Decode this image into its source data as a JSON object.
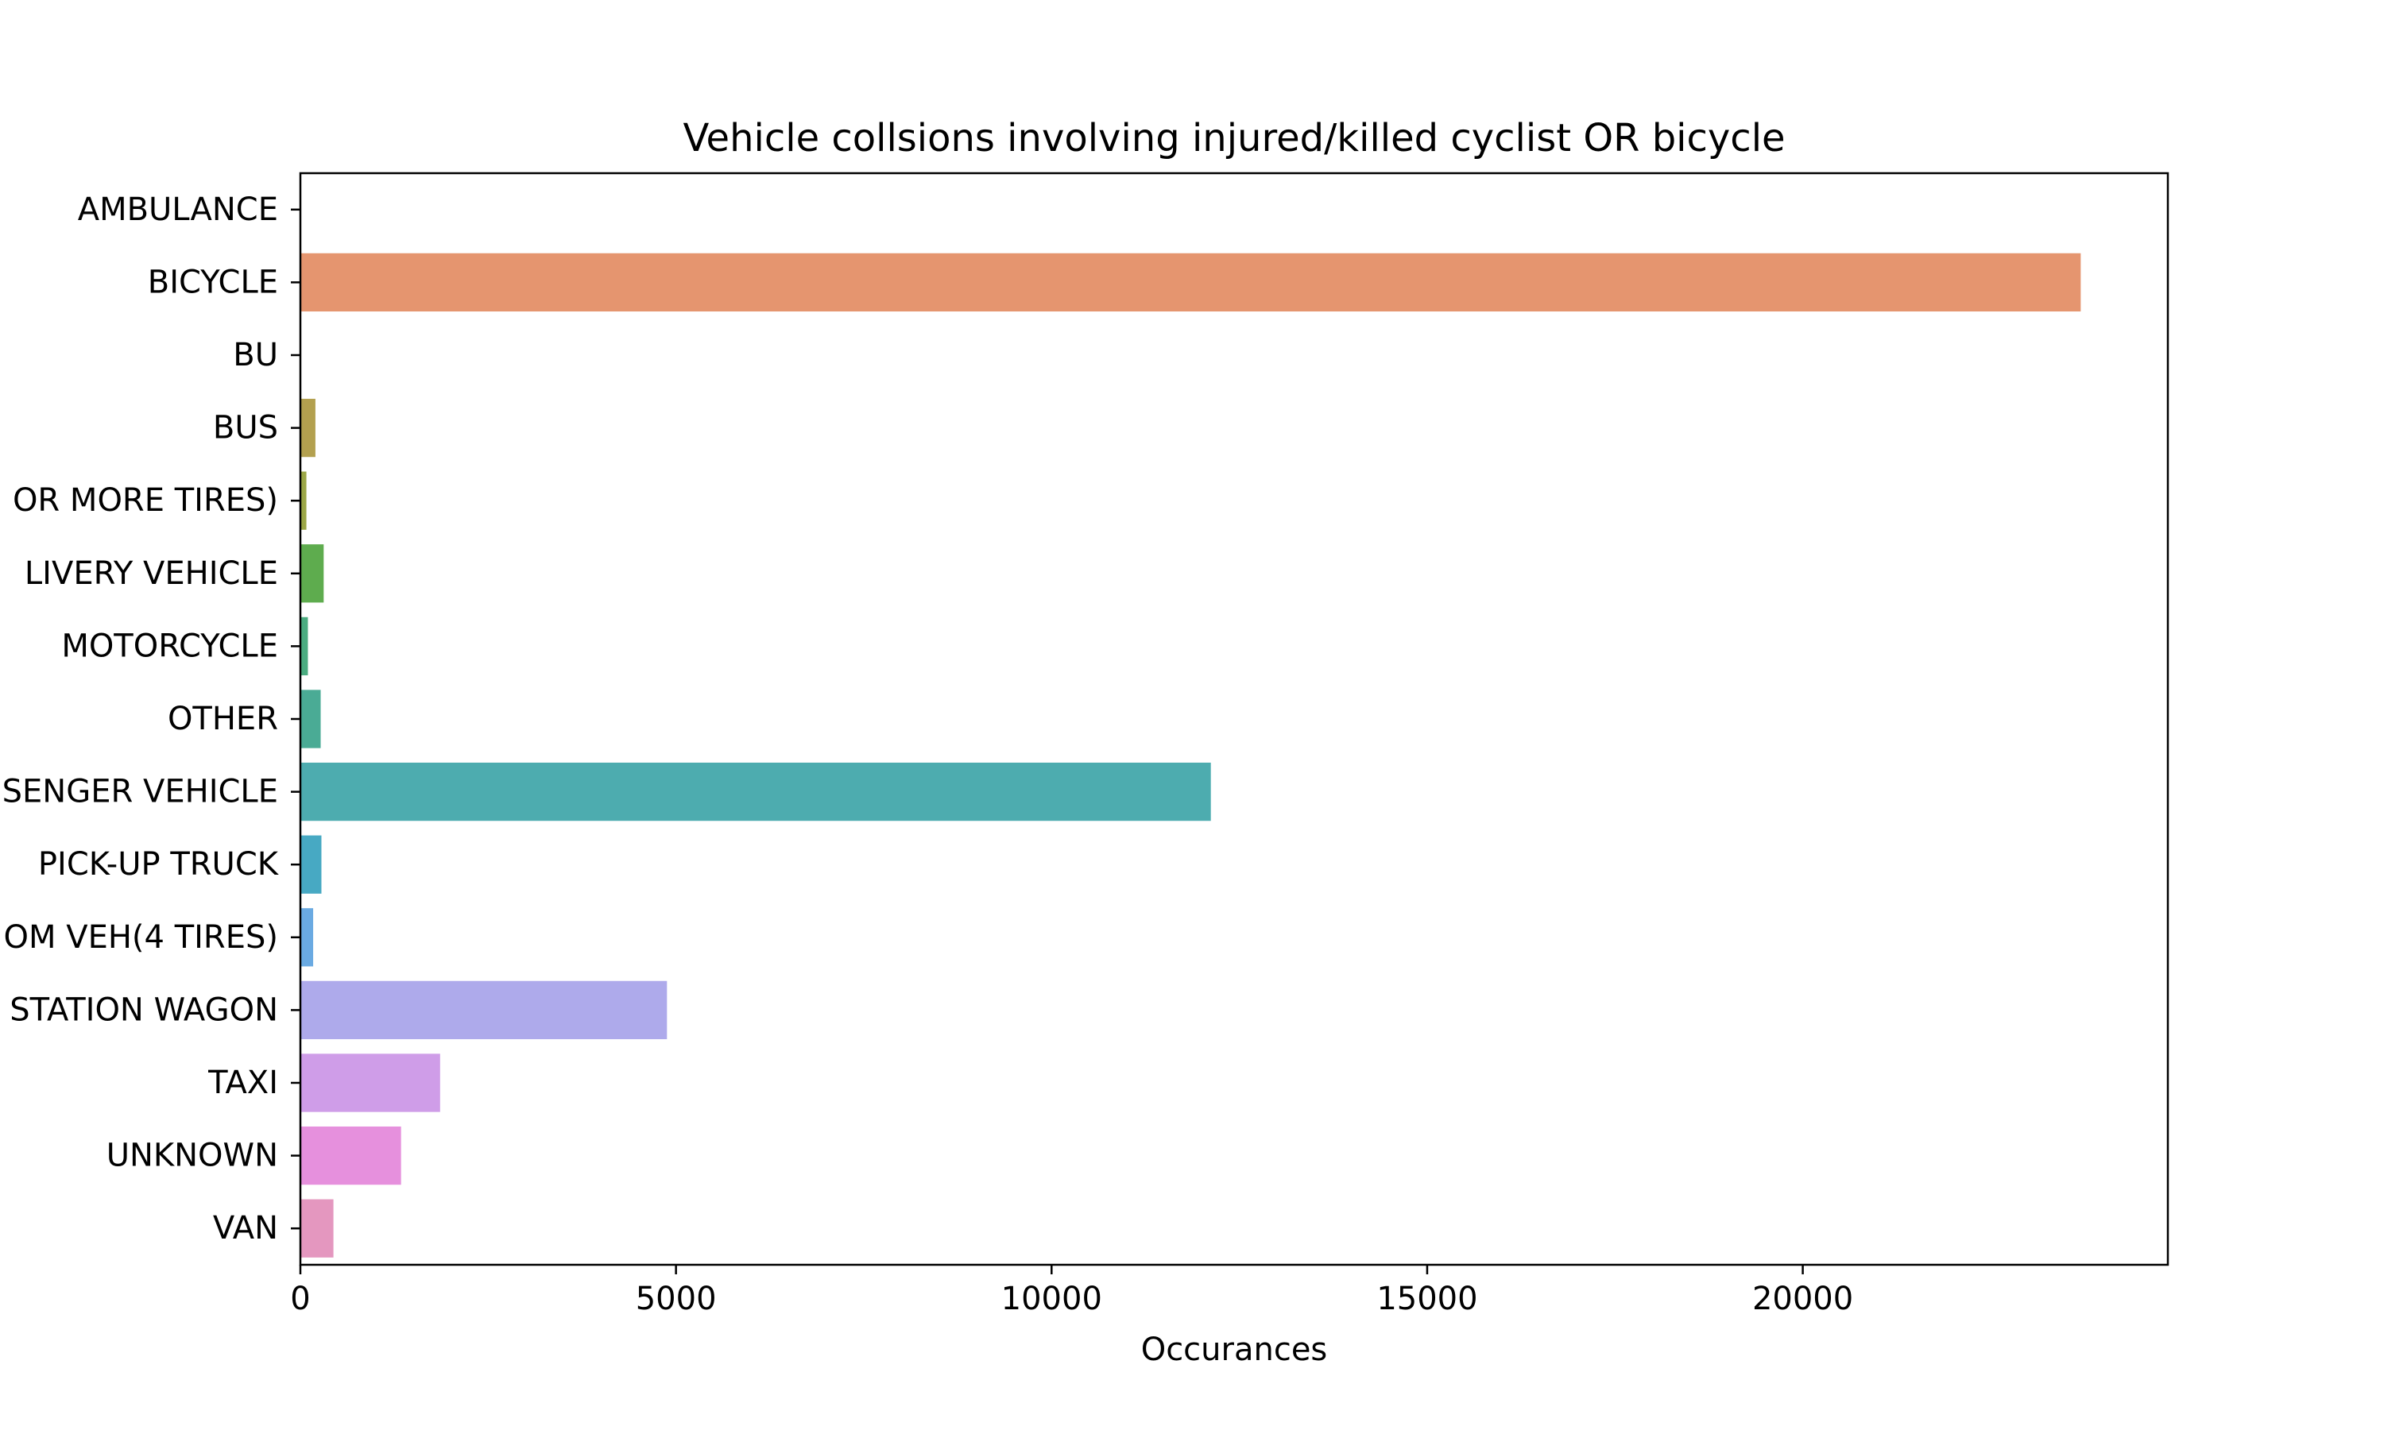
{
  "chart_data": {
    "type": "bar",
    "orientation": "horizontal",
    "title": "Vehicle collsions involving injured/killed cyclist OR bicycle",
    "xlabel": "Occurances",
    "ylabel": "",
    "xlim": [
      0,
      24860
    ],
    "x_ticks": [
      0,
      5000,
      10000,
      15000,
      20000
    ],
    "grid": false,
    "legend": "none",
    "categories": [
      "AMBULANCE",
      "BICYCLE",
      "BU",
      "BUS",
      "OR MORE TIRES)",
      "LIVERY VEHICLE",
      "MOTORCYCLE",
      "OTHER",
      "SENGER VEHICLE",
      "PICK-UP TRUCK",
      "OM VEH(4 TIRES)",
      "STATION WAGON",
      "TAXI",
      "UNKNOWN",
      "VAN"
    ],
    "values": [
      3,
      23700,
      2,
      200,
      80,
      310,
      100,
      270,
      12120,
      280,
      170,
      4880,
      1860,
      1340,
      440
    ],
    "colors": [
      "#ea8f86",
      "#e5956f",
      "#cf9b5d",
      "#b3a04f",
      "#9ca747",
      "#5eac4e",
      "#4bac80",
      "#4aab95",
      "#4dacaf",
      "#47a9c3",
      "#6aaae2",
      "#aeaaeb",
      "#cf9de8",
      "#e690dd",
      "#e497bf"
    ]
  }
}
